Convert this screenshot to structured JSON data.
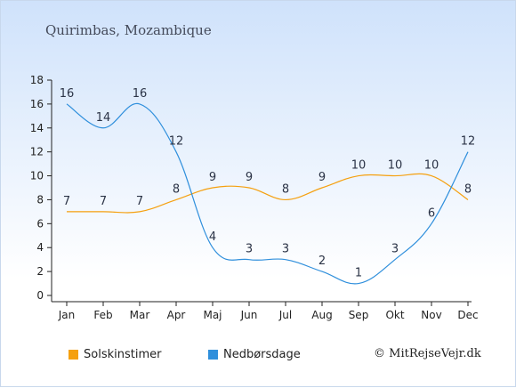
{
  "chart_data": {
    "type": "line",
    "title": "Quirimbas, Mozambique",
    "categories": [
      "Jan",
      "Feb",
      "Mar",
      "Apr",
      "Maj",
      "Jun",
      "Jul",
      "Aug",
      "Sep",
      "Okt",
      "Nov",
      "Dec"
    ],
    "ylim": [
      0,
      18
    ],
    "yticks": [
      "0",
      "2",
      "4",
      "6",
      "8",
      "10",
      "12",
      "14",
      "16",
      "18"
    ],
    "series": [
      {
        "name": "Solskinstimer",
        "color": "#f5a00f",
        "values": [
          7,
          7,
          7,
          8,
          9,
          9,
          8,
          9,
          10,
          10,
          10,
          8
        ]
      },
      {
        "name": "Nedbørsdage",
        "color": "#2f8fdc",
        "values": [
          16,
          14,
          16,
          12,
          4,
          3,
          3,
          2,
          1,
          3,
          6,
          12
        ]
      }
    ],
    "legend": "bottom-left",
    "grid": false
  },
  "credit": "© MitRejseVejr.dk"
}
